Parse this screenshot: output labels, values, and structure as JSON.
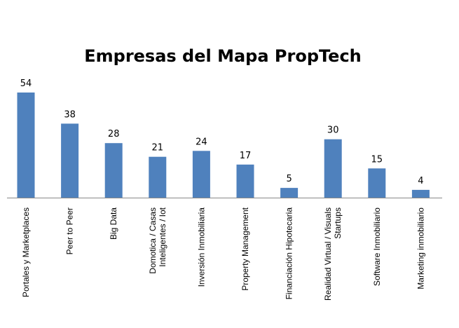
{
  "chart_data": {
    "type": "bar",
    "title": "Empresas del Mapa PropTech",
    "xlabel": "",
    "ylabel": "",
    "categories": [
      [
        "Portales y Marketplaces"
      ],
      [
        "Peer to Peer"
      ],
      [
        "Big Data"
      ],
      [
        "Domotica / Casas",
        "Inteligentes / Iot"
      ],
      [
        "Inversión Inmobiliaria"
      ],
      [
        "Property Management"
      ],
      [
        "Financiación Hipotecaria"
      ],
      [
        "Realidad Virtual / Visuals",
        "Startups"
      ],
      [
        "Software Inmobiliario"
      ],
      [
        "Marketing inmobiliario"
      ]
    ],
    "values": [
      54,
      38,
      28,
      21,
      24,
      17,
      5,
      30,
      15,
      4
    ],
    "ylim": [
      0,
      54
    ],
    "grid": false,
    "legend": "none",
    "bar_color": "#4f81bd",
    "axis_color": "#888888"
  }
}
